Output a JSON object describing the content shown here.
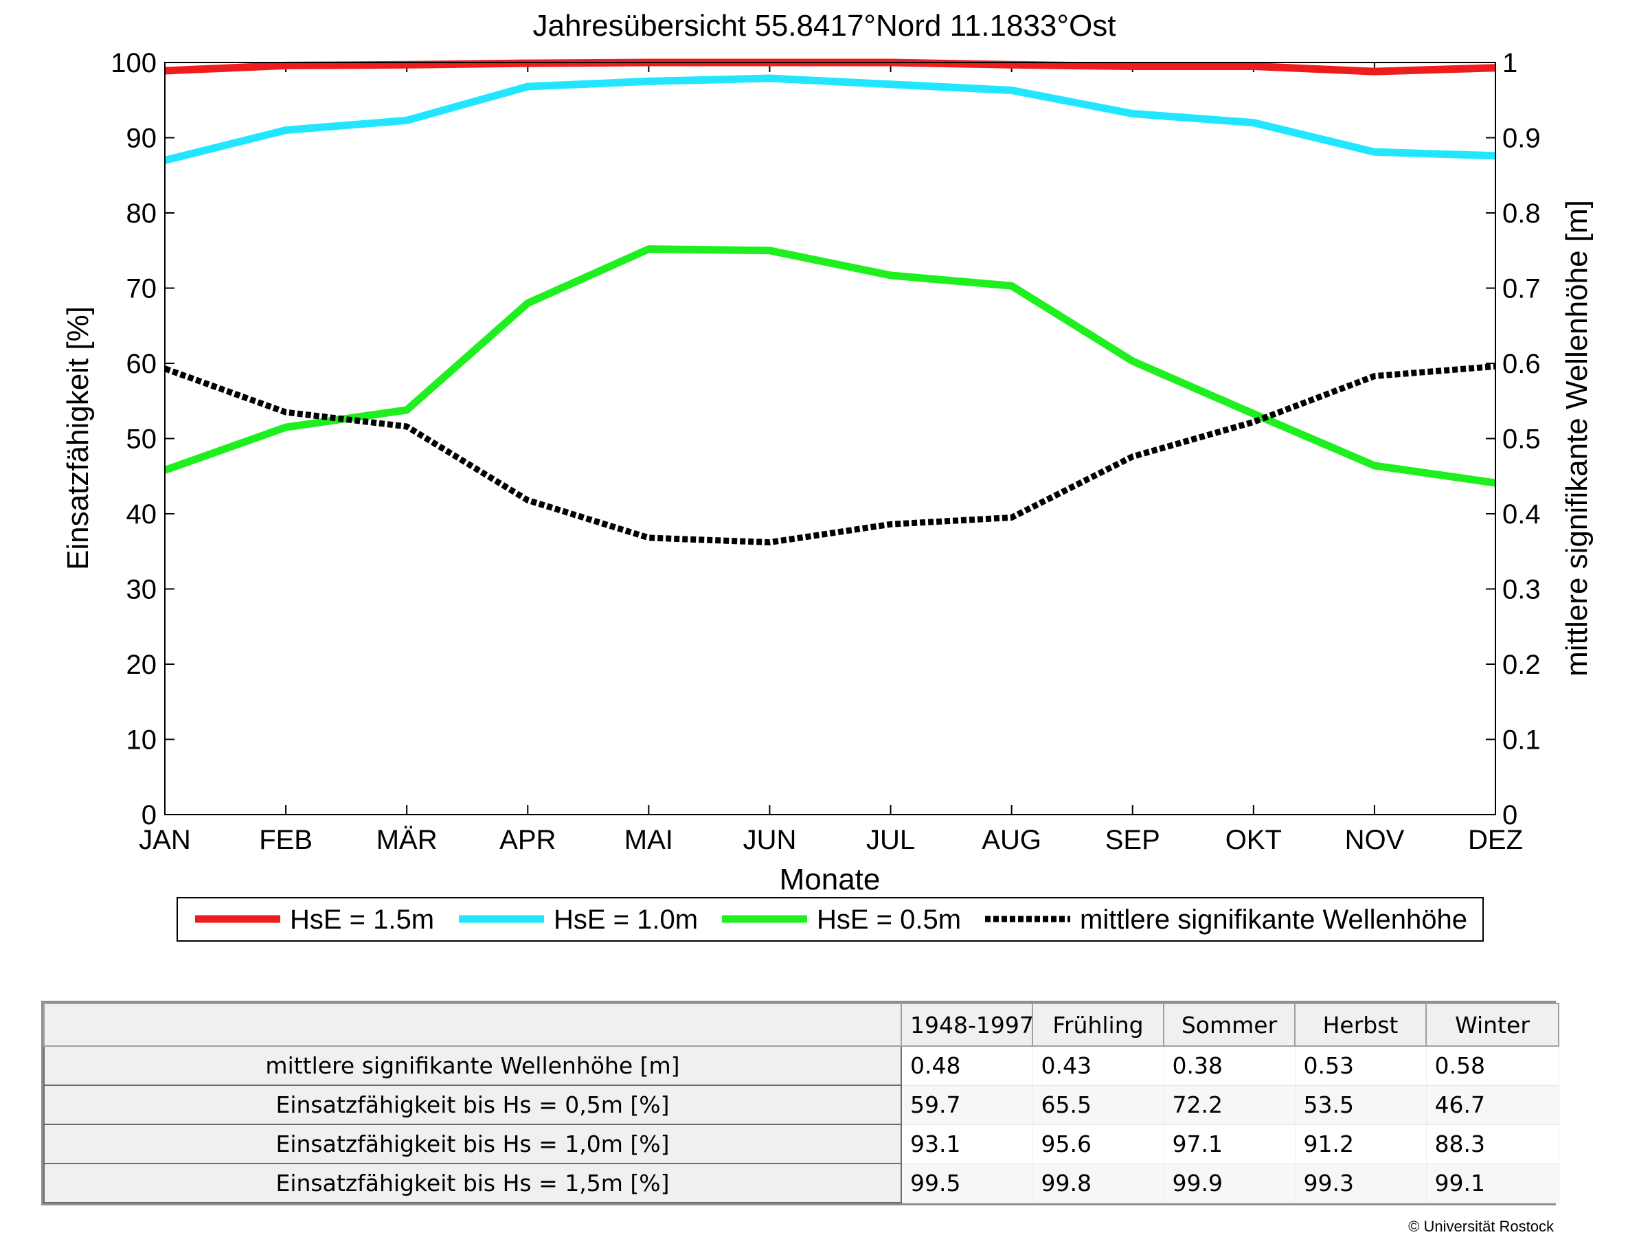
{
  "chart_data": {
    "type": "line",
    "title": "Jahresübersicht  55.8417°Nord  11.1833°Ost",
    "xlabel": "Monate",
    "ylabel_left": "Einsatzfähigkeit [%]",
    "ylabel_right": "mittlere signifikante Wellenhöhe [m]",
    "categories": [
      "JAN",
      "FEB",
      "MÄR",
      "APR",
      "MAI",
      "JUN",
      "JUL",
      "AUG",
      "SEP",
      "OKT",
      "NOV",
      "DEZ"
    ],
    "ylim_left": [
      0,
      100
    ],
    "ylim_right": [
      0,
      1
    ],
    "yticks_left": [
      "0",
      "10",
      "20",
      "30",
      "40",
      "50",
      "60",
      "70",
      "80",
      "90",
      "100"
    ],
    "yticks_right": [
      "0",
      "0.1",
      "0.2",
      "0.3",
      "0.4",
      "0.5",
      "0.6",
      "0.7",
      "0.8",
      "0.9",
      "1"
    ],
    "grid": false,
    "legend_position": "bottom",
    "series": [
      {
        "name": "HsE = 1.5m",
        "axis": "left",
        "color": "#ee1c1c",
        "dashed": false,
        "values": [
          98.9,
          99.6,
          99.7,
          99.9,
          100.0,
          100.0,
          100.0,
          99.7,
          99.5,
          99.5,
          98.8,
          99.3
        ]
      },
      {
        "name": "HsE = 1.0m",
        "axis": "left",
        "color": "#22e6ff",
        "dashed": false,
        "values": [
          87.0,
          91.0,
          92.3,
          96.8,
          97.5,
          97.9,
          97.1,
          96.3,
          93.2,
          92.0,
          88.1,
          87.6
        ]
      },
      {
        "name": "HsE = 0.5m",
        "axis": "left",
        "color": "#1eef1e",
        "dashed": false,
        "values": [
          45.8,
          51.5,
          53.8,
          68.0,
          75.2,
          75.0,
          71.7,
          70.3,
          60.3,
          53.3,
          46.4,
          44.1
        ]
      },
      {
        "name": "mittlere signifikante Wellenhöhe",
        "axis": "right",
        "color": "#000000",
        "dashed": true,
        "values": [
          0.593,
          0.535,
          0.516,
          0.418,
          0.368,
          0.362,
          0.386,
          0.395,
          0.476,
          0.522,
          0.583,
          0.596
        ]
      }
    ]
  },
  "table": {
    "headers": [
      "",
      "1948-1997",
      "Frühling",
      "Sommer",
      "Herbst",
      "Winter"
    ],
    "rows": [
      {
        "label": "mittlere signifikante Wellenhöhe [m]",
        "values": [
          "0.48",
          "0.43",
          "0.38",
          "0.53",
          "0.58"
        ]
      },
      {
        "label": "Einsatzfähigkeit bis Hs = 0,5m [%]",
        "values": [
          "59.7",
          "65.5",
          "72.2",
          "53.5",
          "46.7"
        ]
      },
      {
        "label": "Einsatzfähigkeit bis Hs = 1,0m [%]",
        "values": [
          "93.1",
          "95.6",
          "97.1",
          "91.2",
          "88.3"
        ]
      },
      {
        "label": "Einsatzfähigkeit bis Hs = 1,5m [%]",
        "values": [
          "99.5",
          "99.8",
          "99.9",
          "99.3",
          "99.1"
        ]
      }
    ]
  },
  "copyright": "© Universität Rostock"
}
